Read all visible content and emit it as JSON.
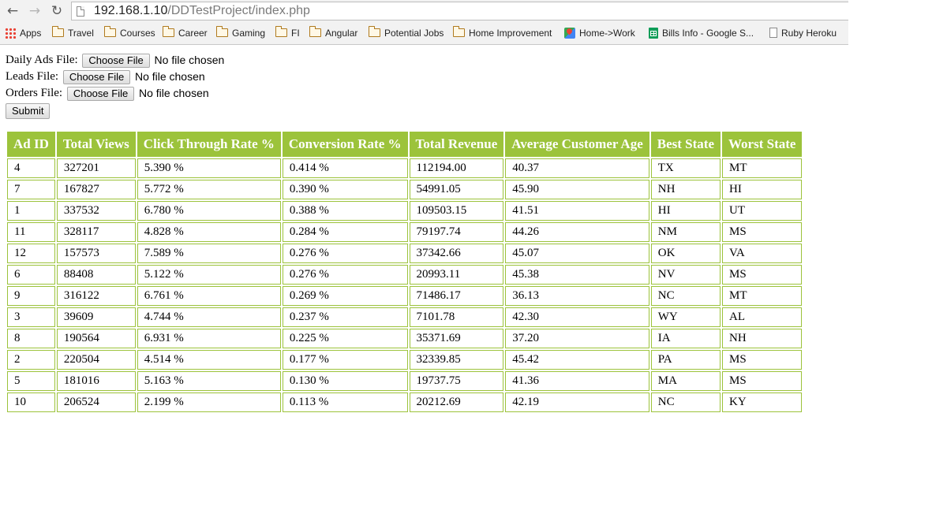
{
  "browser": {
    "url_host": "192.168.1.10",
    "url_path": "/DDTestProject/index.php",
    "bookmarks": [
      {
        "label": "Apps",
        "icon": "apps-grid-icon"
      },
      {
        "label": "Travel",
        "icon": "folder-icon"
      },
      {
        "label": "Courses",
        "icon": "folder-icon"
      },
      {
        "label": "Career",
        "icon": "folder-icon"
      },
      {
        "label": "Gaming",
        "icon": "folder-icon"
      },
      {
        "label": "FI",
        "icon": "folder-icon"
      },
      {
        "label": "Angular",
        "icon": "folder-icon"
      },
      {
        "label": "Potential Jobs",
        "icon": "folder-icon"
      },
      {
        "label": "Home Improvement",
        "icon": "folder-icon"
      },
      {
        "label": "Home->Work",
        "icon": "google-maps-icon"
      },
      {
        "label": "Bills Info - Google S...",
        "icon": "google-sheets-icon"
      },
      {
        "label": "Ruby Heroku",
        "icon": "page-icon"
      }
    ]
  },
  "form": {
    "fields": [
      {
        "label": "Daily Ads File:",
        "button": "Choose File",
        "status": "No file chosen"
      },
      {
        "label": "Leads File:",
        "button": "Choose File",
        "status": "No file chosen"
      },
      {
        "label": "Orders File:",
        "button": "Choose File",
        "status": "No file chosen"
      }
    ],
    "submit_label": "Submit"
  },
  "table": {
    "header_color": "#9cc33b",
    "columns": [
      "Ad ID",
      "Total Views",
      "Click Through Rate %",
      "Conversion Rate %",
      "Total Revenue",
      "Average Customer Age",
      "Best State",
      "Worst State"
    ],
    "rows": [
      [
        "4",
        "327201",
        "5.390 %",
        "0.414 %",
        "112194.00",
        "40.37",
        "TX",
        "MT"
      ],
      [
        "7",
        "167827",
        "5.772 %",
        "0.390 %",
        "54991.05",
        "45.90",
        "NH",
        "HI"
      ],
      [
        "1",
        "337532",
        "6.780 %",
        "0.388 %",
        "109503.15",
        "41.51",
        "HI",
        "UT"
      ],
      [
        "11",
        "328117",
        "4.828 %",
        "0.284 %",
        "79197.74",
        "44.26",
        "NM",
        "MS"
      ],
      [
        "12",
        "157573",
        "7.589 %",
        "0.276 %",
        "37342.66",
        "45.07",
        "OK",
        "VA"
      ],
      [
        "6",
        "88408",
        "5.122 %",
        "0.276 %",
        "20993.11",
        "45.38",
        "NV",
        "MS"
      ],
      [
        "9",
        "316122",
        "6.761 %",
        "0.269 %",
        "71486.17",
        "36.13",
        "NC",
        "MT"
      ],
      [
        "3",
        "39609",
        "4.744 %",
        "0.237 %",
        "7101.78",
        "42.30",
        "WY",
        "AL"
      ],
      [
        "8",
        "190564",
        "6.931 %",
        "0.225 %",
        "35371.69",
        "37.20",
        "IA",
        "NH"
      ],
      [
        "2",
        "220504",
        "4.514 %",
        "0.177 %",
        "32339.85",
        "45.42",
        "PA",
        "MS"
      ],
      [
        "5",
        "181016",
        "5.163 %",
        "0.130 %",
        "19737.75",
        "41.36",
        "MA",
        "MS"
      ],
      [
        "10",
        "206524",
        "2.199 %",
        "0.113 %",
        "20212.69",
        "42.19",
        "NC",
        "KY"
      ]
    ]
  }
}
